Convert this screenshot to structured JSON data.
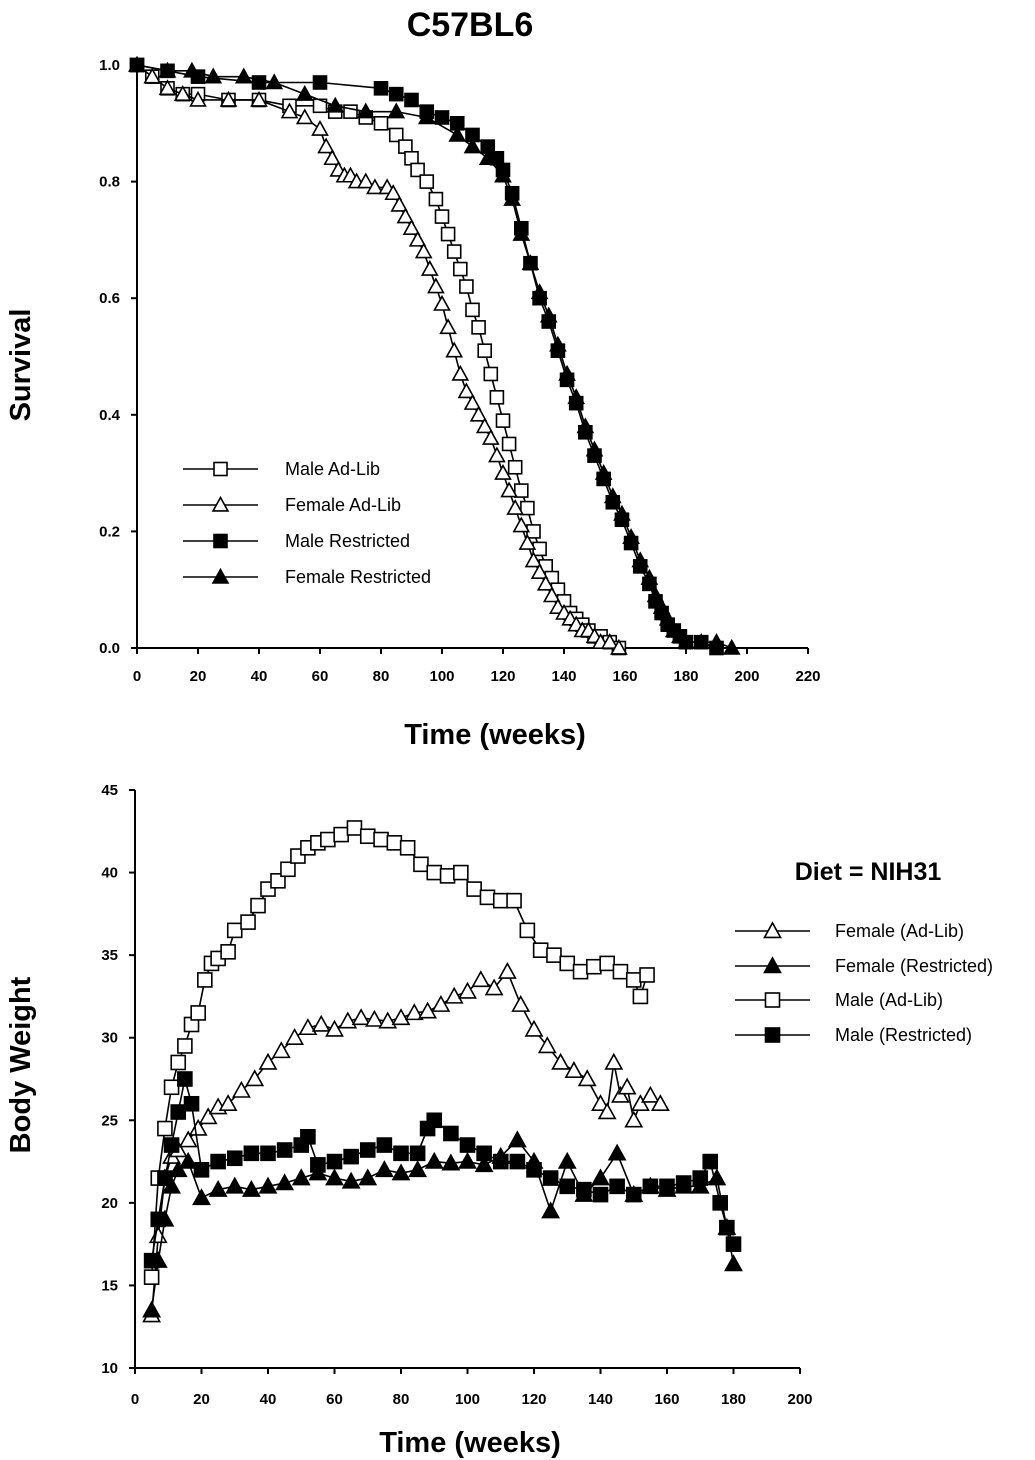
{
  "figure_title": "C57BL6",
  "chart_data": [
    {
      "type": "line",
      "xlabel": "Time (weeks)",
      "ylabel": "Survival",
      "xlim": [
        0,
        220
      ],
      "ylim": [
        0.0,
        1.0
      ],
      "xticks": [
        "0",
        "20",
        "40",
        "60",
        "80",
        "100",
        "120",
        "140",
        "160",
        "180",
        "200",
        "220"
      ],
      "yticks": [
        "0.0",
        "0.2",
        "0.4",
        "0.6",
        "0.8",
        "1.0"
      ],
      "grid": false,
      "legend_position": "lower-left",
      "series": [
        {
          "name": "Male Ad-Lib",
          "marker": "square-open",
          "x": [
            0,
            5,
            10,
            15,
            20,
            30,
            40,
            50,
            60,
            65,
            70,
            75,
            80,
            85,
            88,
            90,
            92,
            95,
            98,
            100,
            102,
            104,
            106,
            108,
            110,
            112,
            114,
            116,
            118,
            120,
            122,
            124,
            126,
            128,
            130,
            132,
            134,
            136,
            138,
            140,
            142,
            144,
            146,
            148,
            150,
            152,
            155,
            158
          ],
          "y": [
            1.0,
            0.98,
            0.96,
            0.95,
            0.95,
            0.94,
            0.94,
            0.93,
            0.93,
            0.92,
            0.92,
            0.91,
            0.9,
            0.88,
            0.86,
            0.84,
            0.82,
            0.8,
            0.77,
            0.74,
            0.71,
            0.68,
            0.65,
            0.62,
            0.58,
            0.55,
            0.51,
            0.47,
            0.43,
            0.39,
            0.35,
            0.31,
            0.27,
            0.24,
            0.2,
            0.17,
            0.14,
            0.12,
            0.1,
            0.08,
            0.06,
            0.05,
            0.04,
            0.03,
            0.02,
            0.02,
            0.01,
            0.0
          ]
        },
        {
          "name": "Female Ad-Lib",
          "marker": "triangle-open",
          "x": [
            0,
            5,
            10,
            15,
            20,
            30,
            40,
            50,
            55,
            60,
            62,
            64,
            66,
            68,
            70,
            72,
            75,
            78,
            82,
            84,
            86,
            88,
            90,
            92,
            94,
            96,
            98,
            100,
            102,
            104,
            106,
            108,
            110,
            112,
            114,
            116,
            118,
            120,
            122,
            124,
            126,
            128,
            130,
            132,
            134,
            136,
            138,
            140,
            142,
            144,
            146,
            148,
            150,
            152,
            155,
            158
          ],
          "y": [
            1.0,
            0.98,
            0.96,
            0.95,
            0.94,
            0.94,
            0.94,
            0.92,
            0.91,
            0.89,
            0.86,
            0.84,
            0.82,
            0.81,
            0.81,
            0.8,
            0.8,
            0.79,
            0.79,
            0.78,
            0.76,
            0.74,
            0.72,
            0.7,
            0.68,
            0.65,
            0.62,
            0.59,
            0.55,
            0.51,
            0.47,
            0.44,
            0.42,
            0.4,
            0.38,
            0.36,
            0.33,
            0.3,
            0.27,
            0.24,
            0.21,
            0.18,
            0.15,
            0.13,
            0.11,
            0.09,
            0.07,
            0.06,
            0.05,
            0.04,
            0.03,
            0.03,
            0.02,
            0.01,
            0.01,
            0.0
          ]
        },
        {
          "name": "Male Restricted",
          "marker": "square-filled",
          "x": [
            0,
            10,
            20,
            40,
            60,
            80,
            85,
            90,
            95,
            100,
            105,
            110,
            115,
            118,
            120,
            123,
            126,
            129,
            132,
            135,
            138,
            141,
            144,
            147,
            150,
            153,
            156,
            159,
            162,
            165,
            168,
            170,
            172,
            174,
            176,
            178,
            180,
            185,
            190
          ],
          "y": [
            1.0,
            0.99,
            0.98,
            0.97,
            0.97,
            0.96,
            0.95,
            0.94,
            0.92,
            0.91,
            0.9,
            0.88,
            0.86,
            0.84,
            0.82,
            0.78,
            0.72,
            0.66,
            0.6,
            0.56,
            0.51,
            0.46,
            0.42,
            0.37,
            0.33,
            0.29,
            0.25,
            0.22,
            0.18,
            0.14,
            0.11,
            0.08,
            0.06,
            0.04,
            0.03,
            0.02,
            0.01,
            0.01,
            0.0
          ]
        },
        {
          "name": "Female Restricted",
          "marker": "triangle-filled",
          "x": [
            0,
            10,
            18,
            25,
            35,
            45,
            55,
            65,
            75,
            85,
            95,
            105,
            110,
            115,
            120,
            123,
            126,
            129,
            132,
            135,
            138,
            141,
            144,
            147,
            150,
            153,
            156,
            159,
            162,
            165,
            168,
            170,
            172,
            174,
            176,
            178,
            180,
            185,
            190,
            195
          ],
          "y": [
            1.0,
            0.99,
            0.99,
            0.98,
            0.98,
            0.97,
            0.95,
            0.93,
            0.92,
            0.92,
            0.91,
            0.88,
            0.86,
            0.84,
            0.81,
            0.77,
            0.71,
            0.66,
            0.61,
            0.57,
            0.52,
            0.47,
            0.43,
            0.38,
            0.34,
            0.3,
            0.26,
            0.23,
            0.19,
            0.15,
            0.12,
            0.09,
            0.07,
            0.05,
            0.03,
            0.02,
            0.01,
            0.01,
            0.01,
            0.0
          ]
        }
      ]
    },
    {
      "type": "line",
      "xlabel": "Time (weeks)",
      "ylabel": "Body Weight",
      "xlim": [
        0,
        200
      ],
      "ylim": [
        10,
        45
      ],
      "xticks": [
        "0",
        "20",
        "40",
        "60",
        "80",
        "100",
        "120",
        "140",
        "160",
        "180",
        "200"
      ],
      "yticks": [
        "10",
        "15",
        "20",
        "25",
        "30",
        "35",
        "40",
        "45"
      ],
      "grid": false,
      "legend_position": "right",
      "annotation": "Diet = NIH31",
      "series": [
        {
          "name": "Female (Ad-Lib)",
          "marker": "triangle-open",
          "x": [
            5,
            7,
            9,
            11,
            13,
            16,
            19,
            22,
            25,
            28,
            32,
            36,
            40,
            44,
            48,
            52,
            56,
            60,
            64,
            68,
            72,
            76,
            80,
            84,
            88,
            92,
            96,
            100,
            104,
            108,
            112,
            116,
            120,
            124,
            128,
            132,
            136,
            140,
            142,
            144,
            146,
            148,
            150,
            152,
            155,
            158
          ],
          "y": [
            13.2,
            18.0,
            21.5,
            22.8,
            23.2,
            23.8,
            24.5,
            25.2,
            25.8,
            26.0,
            26.8,
            27.5,
            28.5,
            29.2,
            30.0,
            30.6,
            30.8,
            30.5,
            31.0,
            31.2,
            31.1,
            31.0,
            31.2,
            31.5,
            31.6,
            32.0,
            32.5,
            32.8,
            33.5,
            33.0,
            34.0,
            32.0,
            30.5,
            29.5,
            28.5,
            28.0,
            27.5,
            26.0,
            25.5,
            28.5,
            26.5,
            27.0,
            25.0,
            26.0,
            26.5,
            26.0
          ]
        },
        {
          "name": "Female (Restricted)",
          "marker": "triangle-filled",
          "x": [
            5,
            7,
            9,
            11,
            13,
            16,
            20,
            25,
            30,
            35,
            40,
            45,
            50,
            55,
            60,
            65,
            70,
            75,
            80,
            85,
            90,
            95,
            100,
            105,
            110,
            115,
            120,
            125,
            130,
            135,
            140,
            145,
            150,
            155,
            160,
            165,
            170,
            175,
            178,
            180
          ],
          "y": [
            13.5,
            16.5,
            19.0,
            21.0,
            22.0,
            22.5,
            20.3,
            20.8,
            21.0,
            20.8,
            21.0,
            21.2,
            21.5,
            21.8,
            21.5,
            21.3,
            21.5,
            22.0,
            21.8,
            22.0,
            22.5,
            22.4,
            22.5,
            22.3,
            22.8,
            23.8,
            22.5,
            19.5,
            22.5,
            20.5,
            21.5,
            23.0,
            20.5,
            21.0,
            20.8,
            21.0,
            21.0,
            21.5,
            18.5,
            16.3
          ]
        },
        {
          "name": "Male (Ad-Lib)",
          "marker": "square-open",
          "x": [
            5,
            7,
            9,
            11,
            13,
            15,
            17,
            19,
            21,
            23,
            25,
            28,
            30,
            34,
            37,
            40,
            43,
            46,
            49,
            52,
            55,
            58,
            62,
            66,
            70,
            74,
            78,
            82,
            86,
            90,
            94,
            98,
            102,
            106,
            110,
            114,
            118,
            122,
            126,
            130,
            134,
            138,
            142,
            146,
            150,
            152,
            154
          ],
          "y": [
            15.5,
            21.5,
            24.5,
            27.0,
            28.5,
            29.5,
            30.8,
            31.5,
            33.5,
            34.5,
            34.8,
            35.2,
            36.5,
            37.0,
            38.0,
            39.0,
            39.5,
            40.2,
            41.0,
            41.5,
            41.8,
            42.0,
            42.3,
            42.7,
            42.2,
            42.0,
            41.8,
            41.5,
            40.5,
            40.0,
            39.8,
            40.0,
            39.0,
            38.5,
            38.3,
            38.3,
            36.5,
            35.3,
            35.0,
            34.5,
            34.0,
            34.3,
            34.5,
            34.0,
            33.5,
            32.5,
            33.8
          ]
        },
        {
          "name": "Male (Restricted)",
          "marker": "square-filled",
          "x": [
            5,
            7,
            9,
            11,
            13,
            15,
            17,
            20,
            25,
            30,
            35,
            40,
            45,
            50,
            52,
            55,
            60,
            65,
            70,
            75,
            80,
            85,
            88,
            90,
            95,
            100,
            105,
            110,
            115,
            120,
            125,
            130,
            135,
            140,
            145,
            150,
            155,
            160,
            165,
            170,
            173,
            176,
            178,
            180
          ],
          "y": [
            16.5,
            19.0,
            21.5,
            23.5,
            25.5,
            27.5,
            26.0,
            22.0,
            22.5,
            22.7,
            23.0,
            23.0,
            23.2,
            23.5,
            24.0,
            22.3,
            22.5,
            22.8,
            23.2,
            23.5,
            23.0,
            23.0,
            24.5,
            25.0,
            24.2,
            23.5,
            23.0,
            22.5,
            22.5,
            22.0,
            21.5,
            21.0,
            20.8,
            20.5,
            21.0,
            20.5,
            21.0,
            21.0,
            21.2,
            21.5,
            22.5,
            20.0,
            18.5,
            17.5
          ]
        }
      ]
    }
  ]
}
